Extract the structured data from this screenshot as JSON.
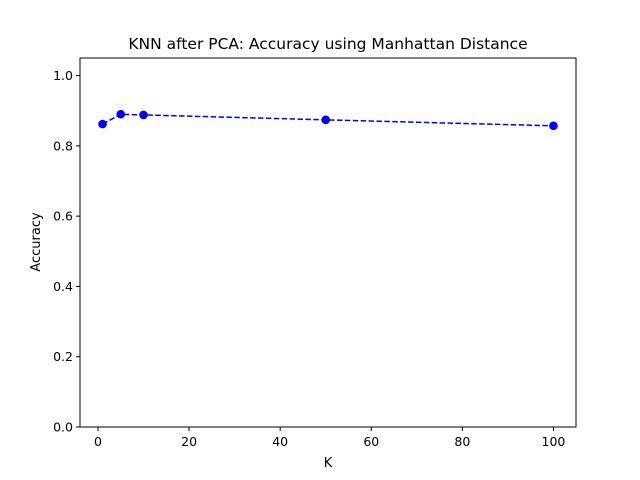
{
  "chart_data": {
    "type": "line",
    "title": "KNN after PCA: Accuracy using Manhattan Distance",
    "xlabel": "K",
    "ylabel": "Accuracy",
    "xlim": [
      -3.95,
      104.95
    ],
    "ylim": [
      0.0,
      1.05
    ],
    "x_ticks": [
      0,
      20,
      40,
      60,
      80,
      100
    ],
    "y_ticks": [
      0.0,
      0.2,
      0.4,
      0.6,
      0.8,
      1.0
    ],
    "grid": false,
    "series": [
      {
        "x": [
          1,
          5,
          10,
          50,
          100
        ],
        "values": [
          0.862,
          0.89,
          0.888,
          0.874,
          0.857
        ],
        "color": "#0000ff",
        "line_style": "dashed",
        "marker": "circle"
      }
    ]
  }
}
